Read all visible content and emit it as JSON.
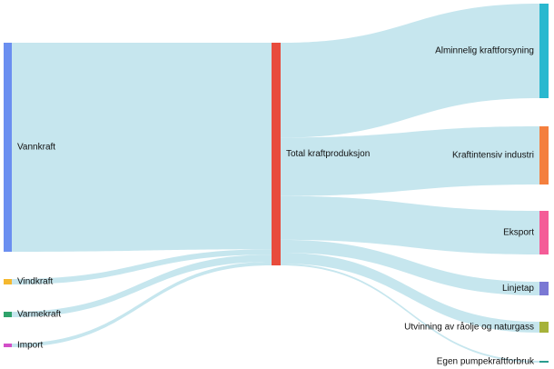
{
  "diagram": {
    "type": "sankey",
    "nodes": [
      {
        "id": "vannkraft",
        "label": "Vannkraft",
        "color": "#6b8ff0"
      },
      {
        "id": "vindkraft",
        "label": "Vindkraft",
        "color": "#f5b82e"
      },
      {
        "id": "varmekraft",
        "label": "Varmekraft",
        "color": "#2fa36b"
      },
      {
        "id": "import",
        "label": "Import",
        "color": "#d24fc8"
      },
      {
        "id": "total",
        "label": "Total kraftproduksjon",
        "color": "#e84c3d"
      },
      {
        "id": "alminnelig",
        "label": "Alminnelig kraftforsyning",
        "color": "#29b8cf"
      },
      {
        "id": "kraftintensiv",
        "label": "Kraftintensiv industri",
        "color": "#f47f3e"
      },
      {
        "id": "eksport",
        "label": "Eksport",
        "color": "#f45c97"
      },
      {
        "id": "linjetap",
        "label": "Linjetap",
        "color": "#7a78d4"
      },
      {
        "id": "utvinning",
        "label": "Utvinning av råolje og naturgass",
        "color": "#a6b23a"
      },
      {
        "id": "pumpekraft",
        "label": "Egen pumpekraftforbruk",
        "color": "#2a9d8f"
      }
    ],
    "links": [
      {
        "source": "vannkraft",
        "target": "total",
        "value": 115
      },
      {
        "source": "vindkraft",
        "target": "total",
        "value": 3
      },
      {
        "source": "varmekraft",
        "target": "total",
        "value": 4
      },
      {
        "source": "import",
        "target": "total",
        "value": 2
      },
      {
        "source": "total",
        "target": "alminnelig",
        "value": 52
      },
      {
        "source": "total",
        "target": "kraftintensiv",
        "value": 32
      },
      {
        "source": "total",
        "target": "eksport",
        "value": 24
      },
      {
        "source": "total",
        "target": "linjetap",
        "value": 7
      },
      {
        "source": "total",
        "target": "utvinning",
        "value": 6
      },
      {
        "source": "total",
        "target": "pumpekraft",
        "value": 1
      }
    ]
  }
}
